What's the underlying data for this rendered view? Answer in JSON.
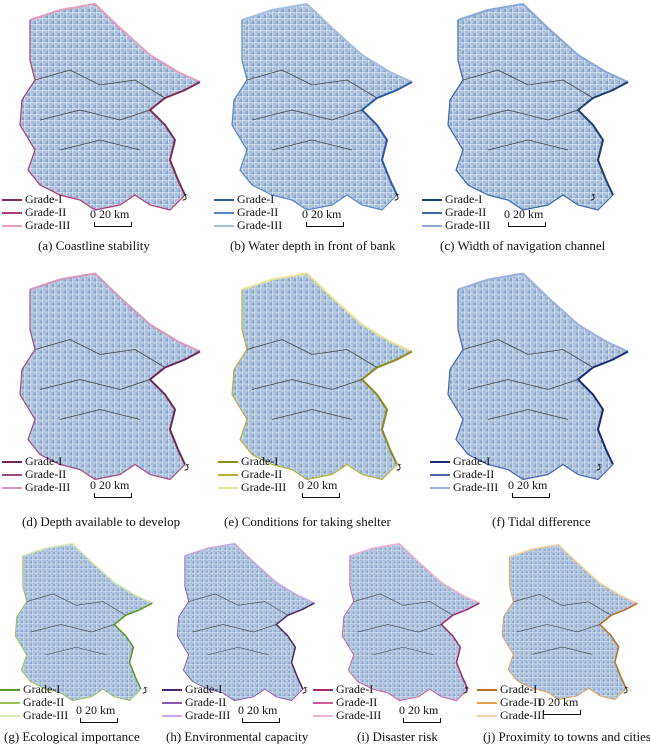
{
  "panels": [
    {
      "caption": "(a) Coastline stability",
      "legend": [
        "Grade-I",
        "Grade-II",
        "Grade-III"
      ],
      "scale": "0   20 km",
      "colors": [
        "#7a2e5a",
        "#b03a74",
        "#e0a0be"
      ]
    },
    {
      "caption": "(b) Water depth in front of bank",
      "legend": [
        "Grade-I",
        "Grade-II",
        "Grade-III"
      ],
      "scale": "0   20 km",
      "colors": [
        "#2c5aa0",
        "#5a86c8",
        "#a7bde0"
      ]
    },
    {
      "caption": "(c) Width of navigation channel",
      "legend": [
        "Grade-I",
        "Grade-II",
        "Grade-III"
      ],
      "scale": "0   20 km",
      "colors": [
        "#1e3c70",
        "#3a6aa8",
        "#8aa9d8"
      ]
    },
    {
      "caption": "(d) Depth available to develop",
      "legend": [
        "Grade-I",
        "Grade-II",
        "Grade-III"
      ],
      "scale": "0   20 km",
      "colors": [
        "#6a2a55",
        "#a04c80",
        "#d499bb"
      ]
    },
    {
      "caption": "(e) Conditions for taking shelter",
      "legend": [
        "Grade-I",
        "Grade-II",
        "Grade-III"
      ],
      "scale": "0   20 km",
      "colors": [
        "#8a8a20",
        "#b6b23a",
        "#e8e49a"
      ]
    },
    {
      "caption": "(f) Tidal difference",
      "legend": [
        "Grade-I",
        "Grade-II",
        "Grade-III"
      ],
      "scale": "0   20 km",
      "colors": [
        "#1a2a78",
        "#4a66b0",
        "#9eb0dc"
      ]
    },
    {
      "caption": "(g) Ecological importance",
      "legend": [
        "Grade-I",
        "Grade-II",
        "Grade-III"
      ],
      "scale": "0   20 km",
      "colors": [
        "#5a9a2a",
        "#9ac05a",
        "#d4e8b0"
      ]
    },
    {
      "caption": "(h) Environmental capacity",
      "legend": [
        "Grade-I",
        "Grade-II",
        "Grade-III"
      ],
      "scale": "0   20 km",
      "colors": [
        "#4a2a6a",
        "#8a5ab0",
        "#c8a8e0"
      ]
    },
    {
      "caption": "(i) Disaster risk",
      "legend": [
        "Grade-I",
        "Grade-II",
        "Grade-III"
      ],
      "scale": "0   20 km",
      "colors": [
        "#a02a70",
        "#d05a9a",
        "#f0b0d0"
      ]
    },
    {
      "caption": "(j) Proximity to towns and cities",
      "legend": [
        "Grade-I",
        "Grade-II",
        "Grade-III"
      ],
      "scale": "0   20 km",
      "colors": [
        "#b8702a",
        "#e0a050",
        "#f2d2a0"
      ]
    }
  ]
}
